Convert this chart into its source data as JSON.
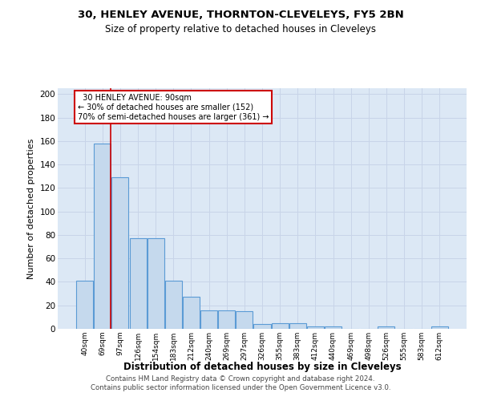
{
  "title1": "30, HENLEY AVENUE, THORNTON-CLEVELEYS, FY5 2BN",
  "title2": "Size of property relative to detached houses in Cleveleys",
  "xlabel": "Distribution of detached houses by size in Cleveleys",
  "ylabel": "Number of detached properties",
  "categories": [
    "40sqm",
    "69sqm",
    "97sqm",
    "126sqm",
    "154sqm",
    "183sqm",
    "212sqm",
    "240sqm",
    "269sqm",
    "297sqm",
    "326sqm",
    "355sqm",
    "383sqm",
    "412sqm",
    "440sqm",
    "469sqm",
    "498sqm",
    "526sqm",
    "555sqm",
    "583sqm",
    "612sqm"
  ],
  "values": [
    41,
    158,
    129,
    77,
    77,
    41,
    27,
    16,
    16,
    15,
    4,
    5,
    5,
    2,
    2,
    0,
    0,
    2,
    0,
    0,
    2
  ],
  "bar_color": "#c5d9ed",
  "bar_edge_color": "#5b9bd5",
  "grid_color": "#c8d4e8",
  "background_color": "#dce8f5",
  "red_line_x": 1.475,
  "annotation_text": "  30 HENLEY AVENUE: 90sqm\n← 30% of detached houses are smaller (152)\n70% of semi-detached houses are larger (361) →",
  "annotation_box_color": "#ffffff",
  "annotation_box_edge": "#cc0000",
  "footer1": "Contains HM Land Registry data © Crown copyright and database right 2024.",
  "footer2": "Contains public sector information licensed under the Open Government Licence v3.0.",
  "ylim": [
    0,
    205
  ],
  "yticks": [
    0,
    20,
    40,
    60,
    80,
    100,
    120,
    140,
    160,
    180,
    200
  ]
}
